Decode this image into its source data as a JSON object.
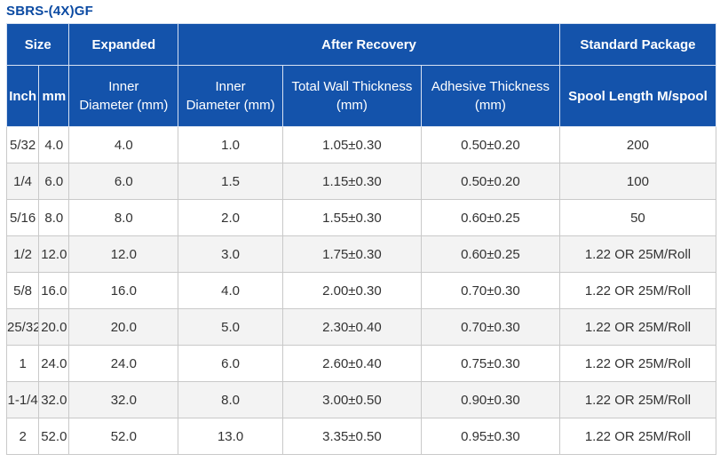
{
  "title": "SBRS-(4X)GF",
  "header": {
    "size": "Size",
    "expanded": "Expanded",
    "after_recovery": "After Recovery",
    "standard_package": "Standard Package",
    "inch": "Inch",
    "mm": "mm",
    "expanded_inner_line1": "Inner",
    "expanded_inner_line2": "Diameter  (mm)",
    "recovered_inner_line1": "Inner",
    "recovered_inner_line2": "Diameter  (mm)",
    "wall_line1": "Total Wall Thickness",
    "wall_line2": "(mm)",
    "adhesive_line1": "Adhesive Thickness",
    "adhesive_line2": "(mm)",
    "spool": "Spool Length M/spool"
  },
  "rows": [
    {
      "inch": "5/32",
      "mm": "4.0",
      "expanded_id": "4.0",
      "recovered_id": "1.0",
      "wall": "1.05±0.30",
      "adhesive": "0.50±0.20",
      "spool": "200"
    },
    {
      "inch": "1/4",
      "mm": "6.0",
      "expanded_id": "6.0",
      "recovered_id": "1.5",
      "wall": "1.15±0.30",
      "adhesive": "0.50±0.20",
      "spool": "100"
    },
    {
      "inch": "5/16",
      "mm": "8.0",
      "expanded_id": "8.0",
      "recovered_id": "2.0",
      "wall": "1.55±0.30",
      "adhesive": "0.60±0.25",
      "spool": "50"
    },
    {
      "inch": "1/2",
      "mm": "12.0",
      "expanded_id": "12.0",
      "recovered_id": "3.0",
      "wall": "1.75±0.30",
      "adhesive": "0.60±0.25",
      "spool": "1.22 OR 25M/Roll"
    },
    {
      "inch": "5/8",
      "mm": "16.0",
      "expanded_id": "16.0",
      "recovered_id": "4.0",
      "wall": "2.00±0.30",
      "adhesive": "0.70±0.30",
      "spool": "1.22 OR 25M/Roll"
    },
    {
      "inch": "25/32",
      "mm": "20.0",
      "expanded_id": "20.0",
      "recovered_id": "5.0",
      "wall": "2.30±0.40",
      "adhesive": "0.70±0.30",
      "spool": "1.22 OR 25M/Roll"
    },
    {
      "inch": "1",
      "mm": "24.0",
      "expanded_id": "24.0",
      "recovered_id": "6.0",
      "wall": "2.60±0.40",
      "adhesive": "0.75±0.30",
      "spool": "1.22 OR 25M/Roll"
    },
    {
      "inch": "1-1/4",
      "mm": "32.0",
      "expanded_id": "32.0",
      "recovered_id": "8.0",
      "wall": "3.00±0.50",
      "adhesive": "0.90±0.30",
      "spool": "1.22 OR 25M/Roll"
    },
    {
      "inch": "2",
      "mm": "52.0",
      "expanded_id": "52.0",
      "recovered_id": "13.0",
      "wall": "3.35±0.50",
      "adhesive": "0.95±0.30",
      "spool": "1.22 OR 25M/Roll"
    }
  ],
  "colors": {
    "title": "#0b4aa2",
    "header_bg": "#1453ab",
    "header_text": "#ffffff",
    "row_alt_bg": "#f3f3f3",
    "cell_text": "#333333"
  }
}
